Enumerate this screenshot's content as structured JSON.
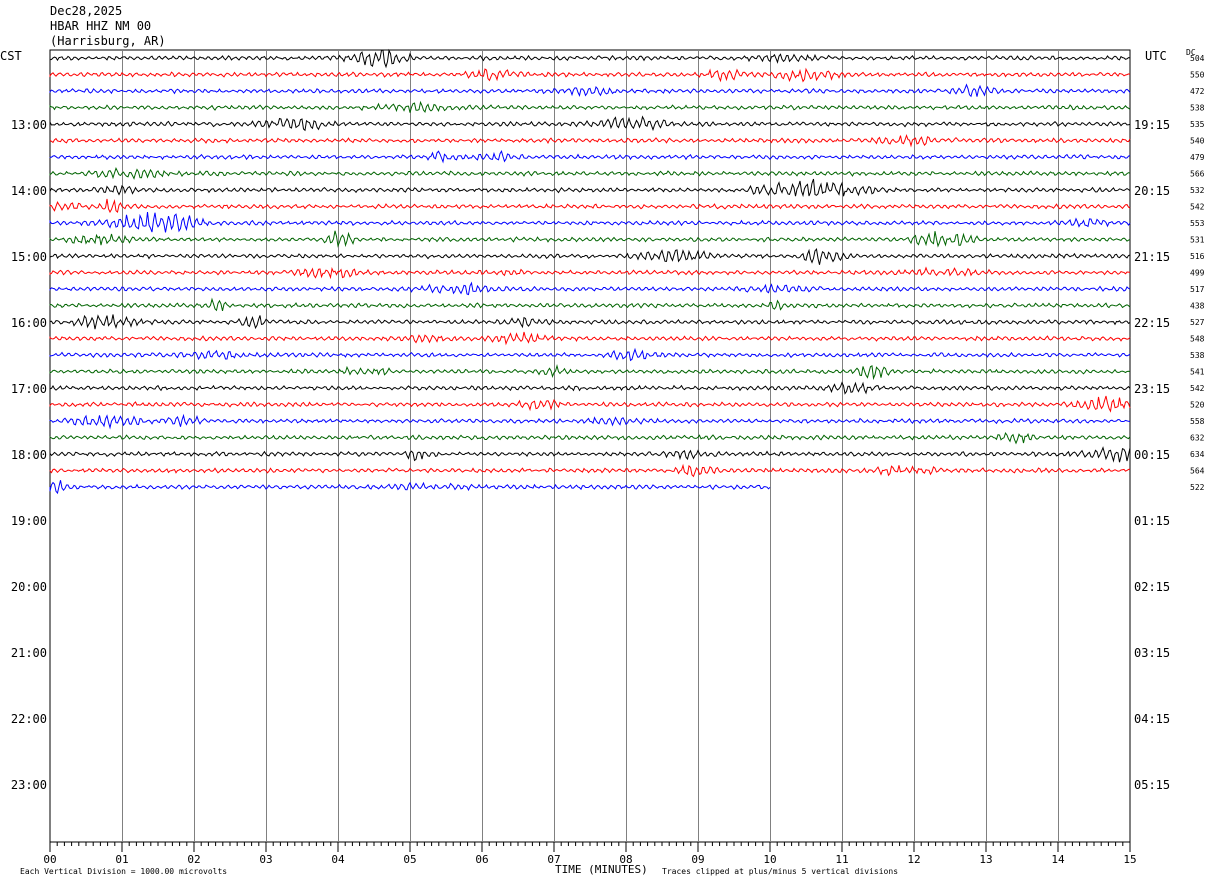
{
  "header": {
    "date": "Dec28,2025",
    "station": "HBAR HHZ NM 00",
    "location": "(Harrisburg, AR)"
  },
  "labels": {
    "left_zone": "CST",
    "right_zone": "UTC",
    "dc_header": "DC",
    "xlabel": "TIME (MINUTES)",
    "footer_left": "Each Vertical Division = 1000.00 microvolts",
    "footer_right": "Traces clipped at plus/minus 5 vertical divisions"
  },
  "colors": {
    "black": "#000000",
    "red": "#ff0000",
    "blue": "#0000ff",
    "green": "#006400",
    "grid": "#808080"
  },
  "chart_data": {
    "type": "line",
    "title": "HBAR HHZ NM 00",
    "xlabel": "TIME (MINUTES)",
    "xlim": [
      0,
      15
    ],
    "x_ticks": [
      "00",
      "01",
      "02",
      "03",
      "04",
      "05",
      "06",
      "07",
      "08",
      "09",
      "10",
      "11",
      "12",
      "13",
      "14",
      "15"
    ],
    "y_left_ticks": [
      "13:00",
      "14:00",
      "15:00",
      "16:00",
      "17:00",
      "18:00",
      "19:00",
      "20:00",
      "21:00",
      "22:00",
      "23:00"
    ],
    "y_right_ticks": [
      "19:15",
      "20:15",
      "21:15",
      "22:15",
      "23:15",
      "00:15",
      "01:15",
      "02:15",
      "03:15",
      "04:15",
      "05:15"
    ],
    "trace_color_cycle": [
      "black",
      "red",
      "blue",
      "green"
    ],
    "trace_dc_values": [
      "504",
      "550",
      "472",
      "538",
      "535",
      "540",
      "479",
      "566",
      "532",
      "542",
      "553",
      "531",
      "516",
      "499",
      "517",
      "438",
      "527",
      "548",
      "538",
      "541",
      "542",
      "520",
      "558",
      "632",
      "634",
      "564",
      "522"
    ],
    "last_trace_end_minute": 10
  }
}
